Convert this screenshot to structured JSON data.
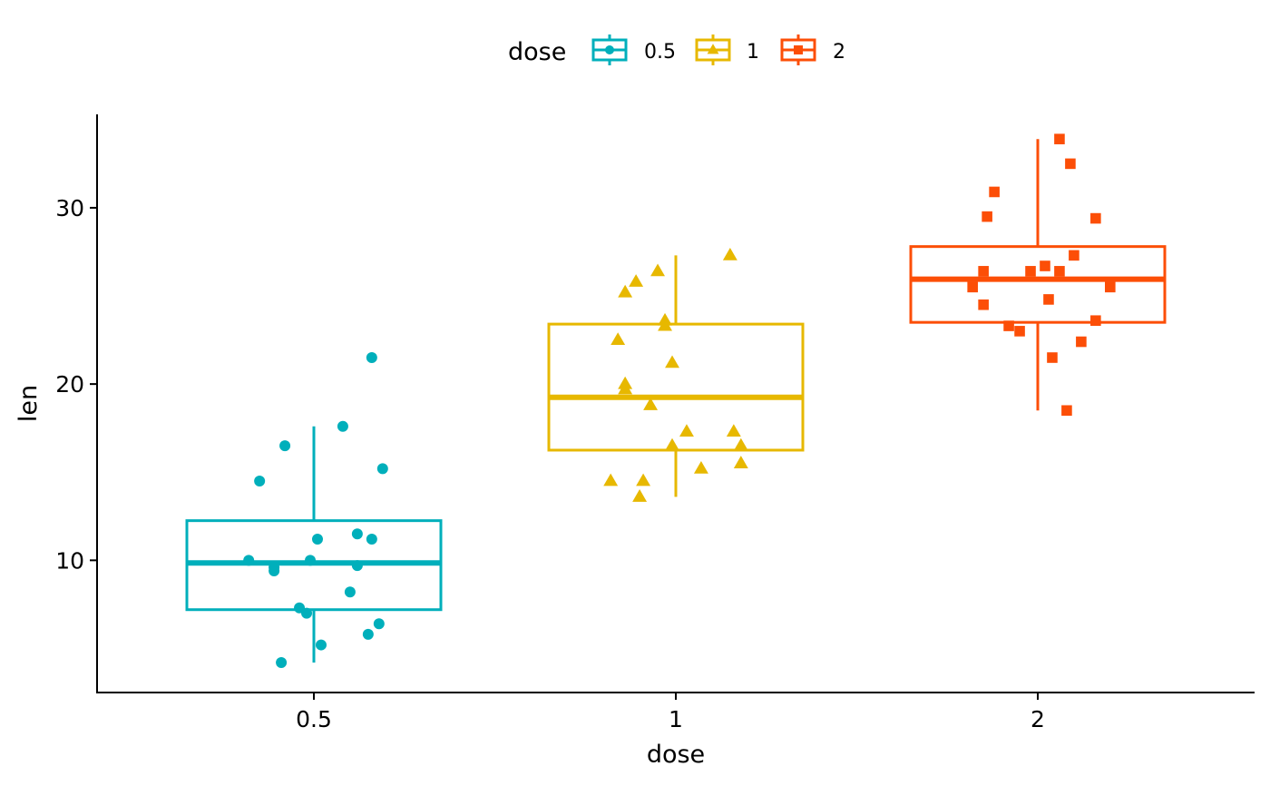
{
  "chart_data": {
    "type": "boxplot",
    "xlabel": "dose",
    "ylabel": "len",
    "categories": [
      "0.5",
      "1",
      "2"
    ],
    "ylim": [
      2.5,
      35.3
    ],
    "yticks": [
      10,
      20,
      30
    ],
    "grid": false,
    "legend": {
      "title": "dose",
      "position": "top",
      "items": [
        {
          "label": "0.5",
          "color": "#00AFBB",
          "shape": "circle"
        },
        {
          "label": "1",
          "color": "#E7B800",
          "shape": "triangle"
        },
        {
          "label": "2",
          "color": "#FC4E07",
          "shape": "square"
        }
      ]
    },
    "series": [
      {
        "category": "0.5",
        "color": "#00AFBB",
        "shape": "circle",
        "box": {
          "whisker_low": 4.2,
          "q1": 7.2,
          "median": 9.85,
          "q3": 12.25,
          "whisker_high": 17.6
        },
        "points": [
          {
            "x": -0.15,
            "y": 14.5
          },
          {
            "x": -0.08,
            "y": 16.5
          },
          {
            "x": 0.08,
            "y": 17.6
          },
          {
            "x": 0.16,
            "y": 21.5
          },
          {
            "x": 0.19,
            "y": 15.2
          },
          {
            "x": 0.01,
            "y": 11.2
          },
          {
            "x": 0.12,
            "y": 11.5
          },
          {
            "x": 0.16,
            "y": 11.2
          },
          {
            "x": -0.18,
            "y": 10.0
          },
          {
            "x": -0.11,
            "y": 9.4
          },
          {
            "x": -0.01,
            "y": 10.0
          },
          {
            "x": 0.12,
            "y": 9.7
          },
          {
            "x": 0.1,
            "y": 8.2
          },
          {
            "x": -0.04,
            "y": 7.3
          },
          {
            "x": -0.02,
            "y": 7.0
          },
          {
            "x": 0.18,
            "y": 6.4
          },
          {
            "x": 0.15,
            "y": 5.8
          },
          {
            "x": 0.02,
            "y": 5.2
          },
          {
            "x": -0.09,
            "y": 4.2
          },
          {
            "x": -0.11,
            "y": 9.6
          }
        ]
      },
      {
        "category": "1",
        "color": "#E7B800",
        "shape": "triangle",
        "box": {
          "whisker_low": 13.6,
          "q1": 16.25,
          "median": 19.25,
          "q3": 23.4,
          "whisker_high": 27.3
        },
        "points": [
          {
            "x": 0.15,
            "y": 27.3
          },
          {
            "x": -0.05,
            "y": 26.4
          },
          {
            "x": -0.11,
            "y": 25.8
          },
          {
            "x": -0.14,
            "y": 25.2
          },
          {
            "x": -0.03,
            "y": 23.6
          },
          {
            "x": -0.03,
            "y": 23.3
          },
          {
            "x": -0.16,
            "y": 22.5
          },
          {
            "x": -0.01,
            "y": 21.2
          },
          {
            "x": -0.14,
            "y": 19.7
          },
          {
            "x": -0.14,
            "y": 20.0
          },
          {
            "x": -0.07,
            "y": 18.8
          },
          {
            "x": 0.16,
            "y": 17.3
          },
          {
            "x": 0.03,
            "y": 17.3
          },
          {
            "x": -0.01,
            "y": 16.5
          },
          {
            "x": 0.18,
            "y": 16.5
          },
          {
            "x": 0.18,
            "y": 15.5
          },
          {
            "x": 0.07,
            "y": 15.2
          },
          {
            "x": -0.18,
            "y": 14.5
          },
          {
            "x": -0.09,
            "y": 14.5
          },
          {
            "x": -0.1,
            "y": 13.6
          }
        ]
      },
      {
        "category": "2",
        "color": "#FC4E07",
        "shape": "square",
        "box": {
          "whisker_low": 18.5,
          "q1": 23.5,
          "median": 25.95,
          "q3": 27.8,
          "whisker_high": 33.9
        },
        "points": [
          {
            "x": 0.06,
            "y": 33.9
          },
          {
            "x": 0.09,
            "y": 32.5
          },
          {
            "x": -0.12,
            "y": 30.9
          },
          {
            "x": -0.14,
            "y": 29.5
          },
          {
            "x": 0.16,
            "y": 29.4
          },
          {
            "x": 0.1,
            "y": 27.3
          },
          {
            "x": 0.02,
            "y": 26.7
          },
          {
            "x": -0.15,
            "y": 26.4
          },
          {
            "x": -0.02,
            "y": 26.4
          },
          {
            "x": 0.06,
            "y": 26.4
          },
          {
            "x": -0.18,
            "y": 25.5
          },
          {
            "x": 0.2,
            "y": 25.5
          },
          {
            "x": -0.15,
            "y": 24.5
          },
          {
            "x": 0.03,
            "y": 24.8
          },
          {
            "x": -0.08,
            "y": 23.3
          },
          {
            "x": 0.16,
            "y": 23.6
          },
          {
            "x": -0.05,
            "y": 23.0
          },
          {
            "x": 0.12,
            "y": 22.4
          },
          {
            "x": 0.04,
            "y": 21.5
          },
          {
            "x": 0.08,
            "y": 18.5
          }
        ]
      }
    ]
  }
}
